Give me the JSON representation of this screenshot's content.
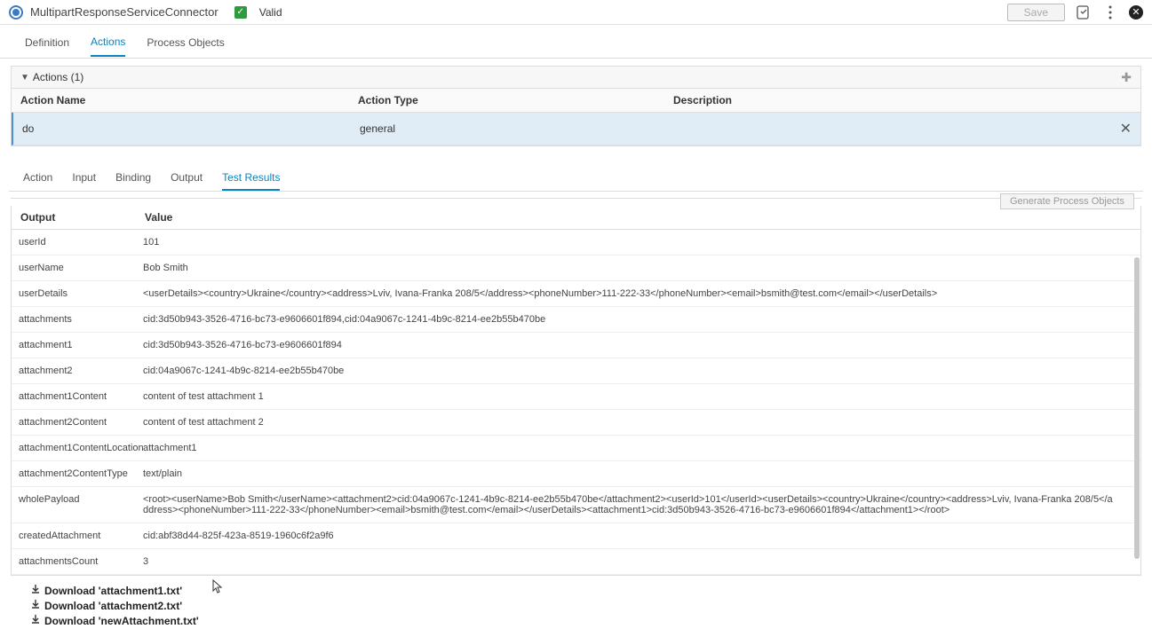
{
  "header": {
    "title": "MultipartResponseServiceConnector",
    "valid_label": "Valid",
    "save_label": "Save"
  },
  "nav": {
    "definition": "Definition",
    "actions": "Actions",
    "process_objects": "Process Objects"
  },
  "actions_panel": {
    "title": "Actions (1)",
    "col_name": "Action Name",
    "col_type": "Action Type",
    "col_desc": "Description",
    "row": {
      "name": "do",
      "type": "general",
      "desc": ""
    }
  },
  "subtabs": {
    "action": "Action",
    "input": "Input",
    "binding": "Binding",
    "output": "Output",
    "test_results": "Test Results"
  },
  "gen_button": "Generate Process Objects",
  "output_table": {
    "col_output": "Output",
    "col_value": "Value",
    "rows": [
      {
        "k": "userId",
        "v": "101"
      },
      {
        "k": "userName",
        "v": "Bob Smith"
      },
      {
        "k": "userDetails",
        "v": "<userDetails><country>Ukraine</country><address>Lviv, Ivana-Franka 208/5</address><phoneNumber>111-222-33</phoneNumber><email>bsmith@test.com</email></userDetails>"
      },
      {
        "k": "attachments",
        "v": "cid:3d50b943-3526-4716-bc73-e9606601f894,cid:04a9067c-1241-4b9c-8214-ee2b55b470be"
      },
      {
        "k": "attachment1",
        "v": "cid:3d50b943-3526-4716-bc73-e9606601f894"
      },
      {
        "k": "attachment2",
        "v": "cid:04a9067c-1241-4b9c-8214-ee2b55b470be"
      },
      {
        "k": "attachment1Content",
        "v": "content of test attachment 1"
      },
      {
        "k": "attachment2Content",
        "v": "content of test attachment 2"
      },
      {
        "k": "attachment1ContentLocation",
        "v": "attachment1"
      },
      {
        "k": "attachment2ContentType",
        "v": "text/plain"
      },
      {
        "k": "wholePayload",
        "v": "<root><userName>Bob Smith</userName><attachment2>cid:04a9067c-1241-4b9c-8214-ee2b55b470be</attachment2><userId>101</userId><userDetails><country>Ukraine</country><address>Lviv, Ivana-Franka 208/5</address><phoneNumber>111-222-33</phoneNumber><email>bsmith@test.com</email></userDetails><attachment1>cid:3d50b943-3526-4716-bc73-e9606601f894</attachment1></root>"
      },
      {
        "k": "createdAttachment",
        "v": "cid:abf38d44-825f-423a-8519-1960c6f2a9f6"
      },
      {
        "k": "attachmentsCount",
        "v": "3"
      }
    ]
  },
  "downloads": [
    "Download 'attachment1.txt'",
    "Download 'attachment2.txt'",
    "Download 'newAttachment.txt'"
  ]
}
